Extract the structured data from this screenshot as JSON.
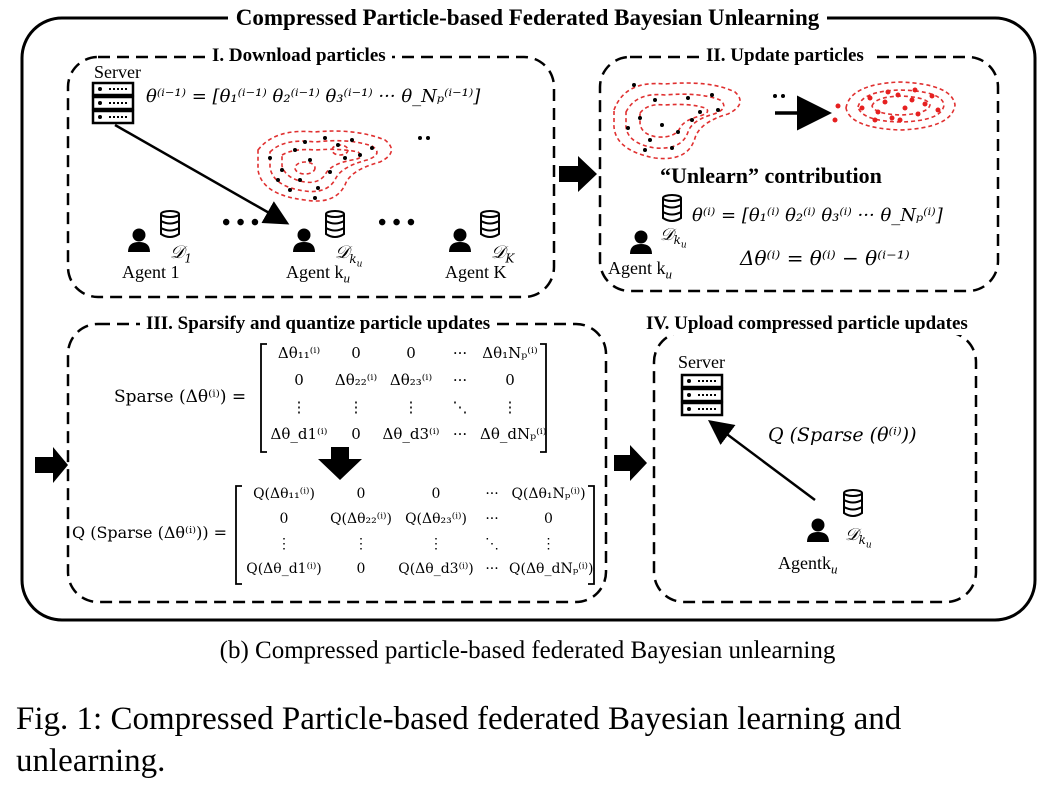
{
  "title": "Compressed Particle-based Federated Bayesian Unlearning",
  "panels": {
    "p1": {
      "title": "I. Download particles",
      "server": "Server",
      "agent1": "Agent 1",
      "agent_ku": "Agent k",
      "agent_ku_sub": "u",
      "agentK": "Agent K",
      "d1": "𝒟",
      "d1_sub": "1",
      "dku": "𝒟",
      "dku_sub": "k",
      "dK": "𝒟",
      "dK_sub": "K",
      "theta_eq": "θ⁽ⁱ⁻¹⁾ = [θ₁⁽ⁱ⁻¹⁾  θ₂⁽ⁱ⁻¹⁾  θ₃⁽ⁱ⁻¹⁾  ···  θ_Nₚ⁽ⁱ⁻¹⁾]",
      "dots": "• • •"
    },
    "p2": {
      "title": "II. Update particles",
      "unlearn": "“Unlearn” contribution",
      "theta_eq": "θ⁽ⁱ⁾ = [θ₁⁽ⁱ⁾  θ₂⁽ⁱ⁾  θ₃⁽ⁱ⁾  ···  θ_Nₚ⁽ⁱ⁾]",
      "delta_eq": "Δθ⁽ⁱ⁾ = θ⁽ⁱ⁾ − θ⁽ⁱ⁻¹⁾",
      "agent": "Agent k",
      "agent_sub": "u",
      "dku": "𝒟",
      "dku_sub": "k"
    },
    "p3": {
      "title": "III. Sparsify and quantize particle updates",
      "sparse_lhs": "Sparse (Δθ⁽ⁱ⁾) =",
      "sparse_rows": [
        [
          "Δθ₁₁⁽ⁱ⁾",
          "0",
          "0",
          "···",
          "Δθ₁Nₚ⁽ⁱ⁾"
        ],
        [
          "0",
          "Δθ₂₂⁽ⁱ⁾",
          "Δθ₂₃⁽ⁱ⁾",
          "···",
          "0"
        ],
        [
          "⋮",
          "⋮",
          "⋮",
          "⋱",
          "⋮"
        ],
        [
          "Δθ_d1⁽ⁱ⁾",
          "0",
          "Δθ_d3⁽ⁱ⁾",
          "···",
          "Δθ_dNₚ⁽ⁱ⁾"
        ]
      ],
      "q_lhs": "Q (Sparse (Δθ⁽ⁱ⁾)) =",
      "q_rows": [
        [
          "Q(Δθ₁₁⁽ⁱ⁾)",
          "0",
          "0",
          "···",
          "Q(Δθ₁Nₚ⁽ⁱ⁾)"
        ],
        [
          "0",
          "Q(Δθ₂₂⁽ⁱ⁾)",
          "Q(Δθ₂₃⁽ⁱ⁾)",
          "···",
          "0"
        ],
        [
          "⋮",
          "⋮",
          "⋮",
          "⋱",
          "⋮"
        ],
        [
          "Q(Δθ_d1⁽ⁱ⁾)",
          "0",
          "Q(Δθ_d3⁽ⁱ⁾)",
          "···",
          "Q(Δθ_dNₚ⁽ⁱ⁾)"
        ]
      ]
    },
    "p4": {
      "title": "IV. Upload compressed particle updates",
      "server": "Server",
      "q_label": "Q (Sparse (θ⁽ⁱ⁾))",
      "agent": "Agentk",
      "agent_sub": "u",
      "dku": "𝒟",
      "dku_sub": "k"
    }
  },
  "caption_b": "(b) Compressed particle-based federated Bayesian unlearning",
  "caption_fig": "Fig. 1: Compressed Particle-based federated Bayesian learning and unlearning."
}
